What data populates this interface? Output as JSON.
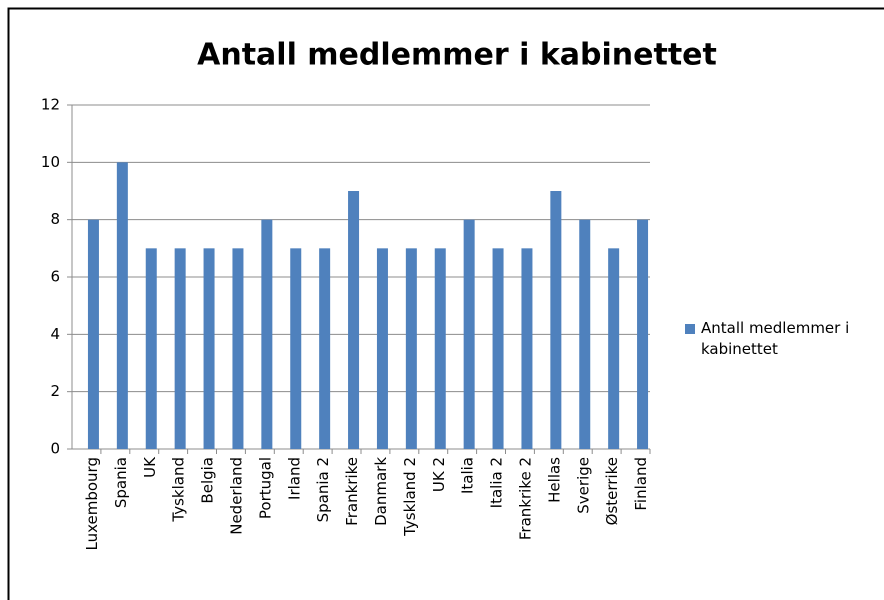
{
  "chart_data": {
    "type": "bar",
    "title": "Antall medlemmer i kabinettet",
    "categories": [
      "Luxembourg",
      "Spania",
      "UK",
      "Tyskland",
      "Belgia",
      "Nederland",
      "Portugal",
      "Irland",
      "Spania 2",
      "Frankrike",
      "Danmark",
      "Tyskland 2",
      "UK 2",
      "Italia",
      "Italia 2",
      "Frankrike 2",
      "Hellas",
      "Sverige",
      "Østerrike",
      "Finland"
    ],
    "series": [
      {
        "name": "Antall medlemmer i kabinettet",
        "color": "#4f81bd",
        "values": [
          8,
          10,
          7,
          7,
          7,
          7,
          8,
          7,
          7,
          9,
          7,
          7,
          7,
          8,
          7,
          7,
          9,
          8,
          7,
          8
        ]
      }
    ],
    "ylim": [
      0,
      12
    ],
    "yticks": [
      0,
      2,
      4,
      6,
      8,
      10,
      12
    ],
    "grid": true,
    "legend": "right"
  }
}
